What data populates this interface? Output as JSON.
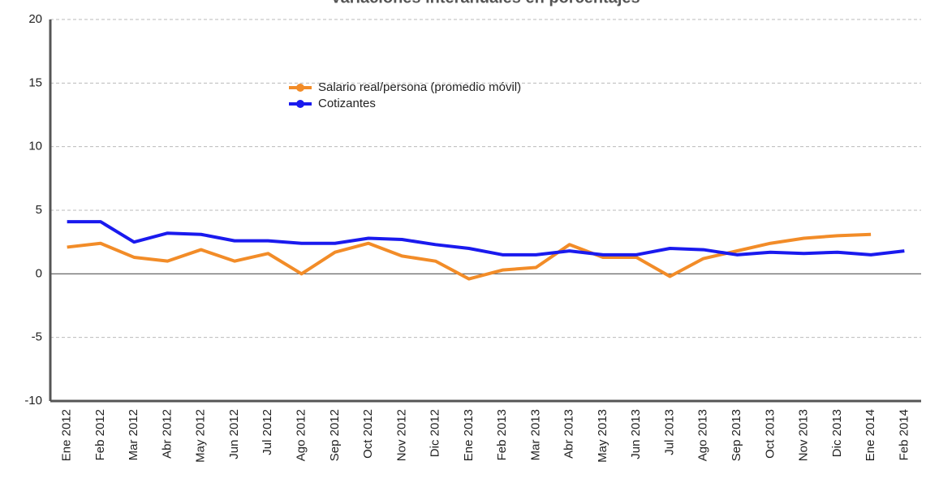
{
  "chart_data": {
    "type": "line",
    "title": "-Variaciones interanuales en porcentajes-",
    "categories": [
      "Ene 2012",
      "Feb 2012",
      "Mar 2012",
      "Abr 2012",
      "May 2012",
      "Jun 2012",
      "Jul 2012",
      "Ago 2012",
      "Sep 2012",
      "Oct 2012",
      "Nov 2012",
      "Dic 2012",
      "Ene 2013",
      "Feb 2013",
      "Mar 2013",
      "Abr 2013",
      "May 2013",
      "Jun 2013",
      "Jul 2013",
      "Ago 2013",
      "Sep 2013",
      "Oct 2013",
      "Nov 2013",
      "Dic 2013",
      "Ene 2014",
      "Feb 2014"
    ],
    "series": [
      {
        "name": "Salario real/persona (promedio móvil)",
        "color": "#f28c28",
        "values": [
          2.1,
          2.4,
          1.3,
          1.0,
          1.9,
          1.0,
          1.6,
          0.0,
          1.7,
          2.4,
          1.4,
          1.0,
          -0.4,
          0.3,
          0.5,
          2.3,
          1.3,
          1.3,
          -0.2,
          1.2,
          1.8,
          2.4,
          2.8,
          3.0,
          3.1,
          null
        ]
      },
      {
        "name": "Cotizantes",
        "color": "#1a1aee",
        "values": [
          4.1,
          4.1,
          2.5,
          3.2,
          3.1,
          2.6,
          2.6,
          2.4,
          2.4,
          2.8,
          2.7,
          2.3,
          2.0,
          1.5,
          1.5,
          1.8,
          1.5,
          1.5,
          2.0,
          1.9,
          1.5,
          1.7,
          1.6,
          1.7,
          1.5,
          1.8
        ]
      }
    ],
    "ylim": [
      -10,
      20
    ],
    "yticks": [
      -10,
      -5,
      0,
      5,
      10,
      15,
      20
    ],
    "grid": true,
    "legend": "upper center"
  }
}
